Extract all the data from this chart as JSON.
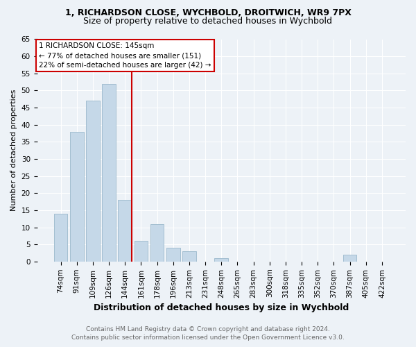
{
  "title1": "1, RICHARDSON CLOSE, WYCHBOLD, DROITWICH, WR9 7PX",
  "title2": "Size of property relative to detached houses in Wychbold",
  "xlabel": "Distribution of detached houses by size in Wychbold",
  "ylabel": "Number of detached properties",
  "categories": [
    "74sqm",
    "91sqm",
    "109sqm",
    "126sqm",
    "144sqm",
    "161sqm",
    "178sqm",
    "196sqm",
    "213sqm",
    "231sqm",
    "248sqm",
    "265sqm",
    "283sqm",
    "300sqm",
    "318sqm",
    "335sqm",
    "352sqm",
    "370sqm",
    "387sqm",
    "405sqm",
    "422sqm"
  ],
  "values": [
    14,
    38,
    47,
    52,
    18,
    6,
    11,
    4,
    3,
    0,
    1,
    0,
    0,
    0,
    0,
    0,
    0,
    0,
    2,
    0,
    0
  ],
  "bar_color": "#c5d8e8",
  "bar_edge_color": "#9ab8cc",
  "vline_color": "#cc0000",
  "vline_x_index": 4,
  "annotation_line1": "1 RICHARDSON CLOSE: 145sqm",
  "annotation_line2": "← 77% of detached houses are smaller (151)",
  "annotation_line3": "22% of semi-detached houses are larger (42) →",
  "annotation_box_facecolor": "#ffffff",
  "annotation_box_edgecolor": "#cc0000",
  "ylim": [
    0,
    65
  ],
  "yticks": [
    0,
    5,
    10,
    15,
    20,
    25,
    30,
    35,
    40,
    45,
    50,
    55,
    60,
    65
  ],
  "footnote1": "Contains HM Land Registry data © Crown copyright and database right 2024.",
  "footnote2": "Contains public sector information licensed under the Open Government Licence v3.0.",
  "bg_color": "#edf2f7",
  "plot_bg_color": "#edf2f7",
  "title1_fontsize": 9,
  "title2_fontsize": 9,
  "xlabel_fontsize": 9,
  "ylabel_fontsize": 8,
  "tick_fontsize": 7.5,
  "footnote_fontsize": 6.5,
  "annotation_fontsize": 7.5
}
